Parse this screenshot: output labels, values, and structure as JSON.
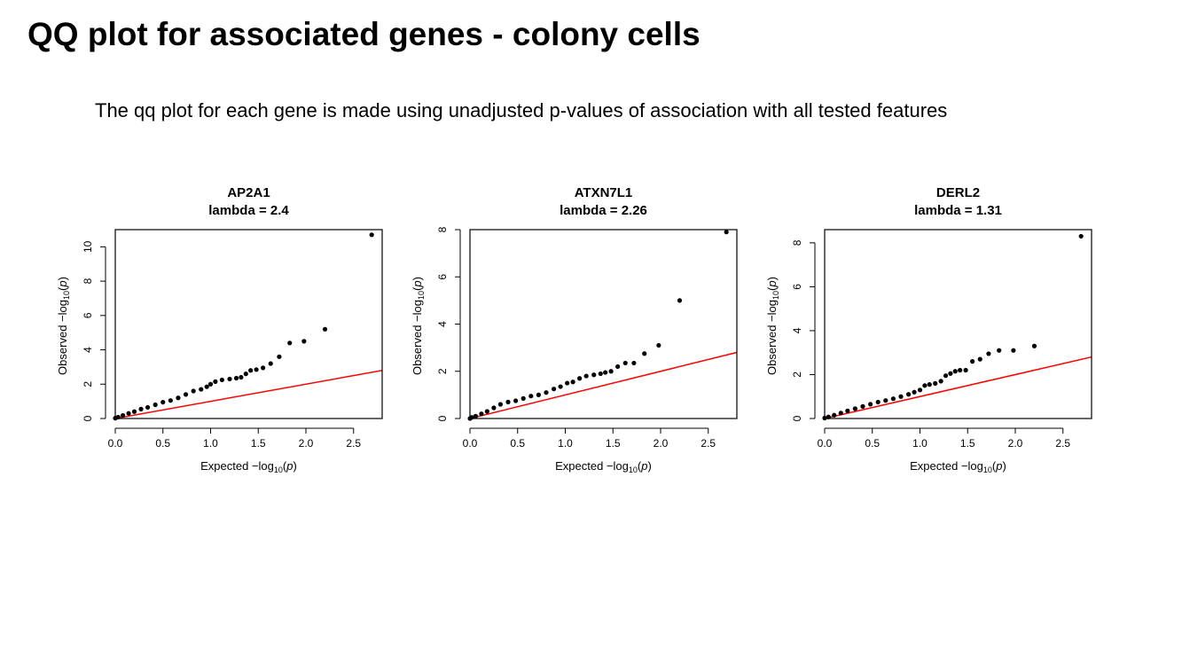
{
  "page": {
    "title": "QQ plot for associated genes - colony cells",
    "subtitle": "The qq plot for each gene is made using unadjusted p-values of association with all tested features"
  },
  "colors": {
    "points": "#000000",
    "reference_line": "#ff0000",
    "axes": "#000000"
  },
  "axis_text": {
    "x_prefix": "Expected ",
    "y_prefix": "Observed ",
    "log_expr": "−log",
    "subscript": "10",
    "arg_open": "(",
    "arg_var": "p",
    "arg_close": ")"
  },
  "chart_data": [
    {
      "type": "scatter",
      "gene": "AP2A1",
      "lambda_label": "lambda = 2.4",
      "lambda": 2.4,
      "xlim": [
        0,
        2.8
      ],
      "ylim": [
        0,
        11
      ],
      "x_ticks": [
        "0.0",
        "0.5",
        "1.0",
        "1.5",
        "2.0",
        "2.5"
      ],
      "y_ticks": [
        "0",
        "2",
        "4",
        "6",
        "8",
        "10"
      ],
      "reference_line": {
        "slope": 1,
        "intercept": 0
      },
      "points": [
        [
          2.69,
          10.7
        ],
        [
          2.2,
          5.2
        ],
        [
          1.98,
          4.5
        ],
        [
          1.83,
          4.4
        ],
        [
          1.72,
          3.6
        ],
        [
          1.63,
          3.2
        ],
        [
          1.55,
          2.95
        ],
        [
          1.48,
          2.85
        ],
        [
          1.42,
          2.8
        ],
        [
          1.37,
          2.6
        ],
        [
          1.32,
          2.4
        ],
        [
          1.27,
          2.35
        ],
        [
          1.2,
          2.3
        ],
        [
          1.12,
          2.25
        ],
        [
          1.05,
          2.15
        ],
        [
          1.0,
          2.0
        ],
        [
          0.96,
          1.85
        ],
        [
          0.9,
          1.7
        ],
        [
          0.82,
          1.6
        ],
        [
          0.74,
          1.4
        ],
        [
          0.66,
          1.2
        ],
        [
          0.58,
          1.05
        ],
        [
          0.5,
          0.95
        ],
        [
          0.42,
          0.8
        ],
        [
          0.34,
          0.65
        ],
        [
          0.27,
          0.55
        ],
        [
          0.2,
          0.4
        ],
        [
          0.14,
          0.3
        ],
        [
          0.08,
          0.18
        ],
        [
          0.03,
          0.08
        ],
        [
          0.0,
          0.02
        ]
      ]
    },
    {
      "type": "scatter",
      "gene": "ATXN7L1",
      "lambda_label": "lambda = 2.26",
      "lambda": 2.26,
      "xlim": [
        0,
        2.8
      ],
      "ylim": [
        0,
        8
      ],
      "x_ticks": [
        "0.0",
        "0.5",
        "1.0",
        "1.5",
        "2.0",
        "2.5"
      ],
      "y_ticks": [
        "0",
        "2",
        "4",
        "6",
        "8"
      ],
      "reference_line": {
        "slope": 1,
        "intercept": 0
      },
      "points": [
        [
          2.69,
          7.9
        ],
        [
          2.2,
          5.0
        ],
        [
          1.98,
          3.1
        ],
        [
          1.83,
          2.75
        ],
        [
          1.72,
          2.35
        ],
        [
          1.63,
          2.35
        ],
        [
          1.55,
          2.2
        ],
        [
          1.48,
          2.0
        ],
        [
          1.42,
          1.95
        ],
        [
          1.37,
          1.9
        ],
        [
          1.3,
          1.85
        ],
        [
          1.22,
          1.8
        ],
        [
          1.15,
          1.7
        ],
        [
          1.08,
          1.55
        ],
        [
          1.02,
          1.5
        ],
        [
          0.95,
          1.35
        ],
        [
          0.88,
          1.25
        ],
        [
          0.8,
          1.1
        ],
        [
          0.72,
          1.0
        ],
        [
          0.64,
          0.95
        ],
        [
          0.56,
          0.85
        ],
        [
          0.48,
          0.75
        ],
        [
          0.4,
          0.7
        ],
        [
          0.32,
          0.6
        ],
        [
          0.25,
          0.45
        ],
        [
          0.18,
          0.3
        ],
        [
          0.12,
          0.2
        ],
        [
          0.06,
          0.1
        ],
        [
          0.02,
          0.05
        ],
        [
          0.0,
          0.0
        ]
      ]
    },
    {
      "type": "scatter",
      "gene": "DERL2",
      "lambda_label": "lambda = 1.31",
      "lambda": 1.31,
      "xlim": [
        0,
        2.8
      ],
      "ylim": [
        0,
        8.6
      ],
      "x_ticks": [
        "0.0",
        "0.5",
        "1.0",
        "1.5",
        "2.0",
        "2.5"
      ],
      "y_ticks": [
        "0",
        "2",
        "4",
        "6",
        "8"
      ],
      "reference_line": {
        "slope": 1,
        "intercept": 0
      },
      "points": [
        [
          2.69,
          8.3
        ],
        [
          2.2,
          3.3
        ],
        [
          1.98,
          3.1
        ],
        [
          1.83,
          3.1
        ],
        [
          1.72,
          2.95
        ],
        [
          1.63,
          2.7
        ],
        [
          1.55,
          2.6
        ],
        [
          1.48,
          2.2
        ],
        [
          1.42,
          2.2
        ],
        [
          1.37,
          2.15
        ],
        [
          1.32,
          2.05
        ],
        [
          1.27,
          1.95
        ],
        [
          1.22,
          1.7
        ],
        [
          1.16,
          1.6
        ],
        [
          1.1,
          1.55
        ],
        [
          1.05,
          1.5
        ],
        [
          1.0,
          1.3
        ],
        [
          0.94,
          1.2
        ],
        [
          0.88,
          1.1
        ],
        [
          0.8,
          1.0
        ],
        [
          0.72,
          0.9
        ],
        [
          0.64,
          0.82
        ],
        [
          0.56,
          0.75
        ],
        [
          0.48,
          0.65
        ],
        [
          0.4,
          0.55
        ],
        [
          0.32,
          0.45
        ],
        [
          0.24,
          0.35
        ],
        [
          0.17,
          0.25
        ],
        [
          0.1,
          0.15
        ],
        [
          0.04,
          0.07
        ],
        [
          0.0,
          0.02
        ]
      ]
    }
  ]
}
